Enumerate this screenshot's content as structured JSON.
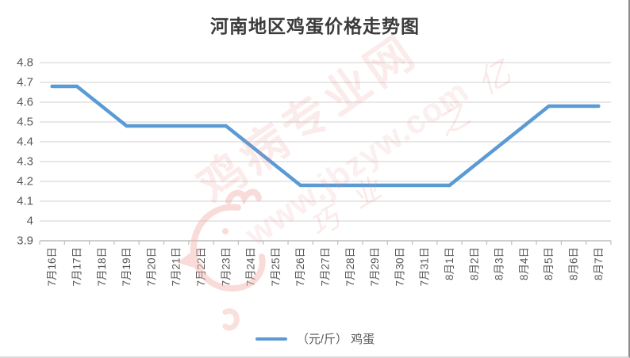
{
  "title": "河南地区鸡蛋价格走势图",
  "legend": {
    "label": "（元/斤） 鸡蛋"
  },
  "watermark": {
    "site_name": "鸡病专业网",
    "url": "www.jbzyw.com",
    "script_glyphs": [
      "之",
      "亿",
      "业",
      "巧"
    ],
    "color": "#e98b8b"
  },
  "colors": {
    "series_line": "#5b9bd5",
    "gridline": "#d9d9d9",
    "axis_line": "#bfbfbf",
    "axis_text": "#595959",
    "title_text": "#3b3b3b"
  },
  "chart_data": {
    "type": "line",
    "title": "河南地区鸡蛋价格走势图",
    "x": [
      "7月16日",
      "7月17日",
      "7月18日",
      "7月19日",
      "7月20日",
      "7月21日",
      "7月22日",
      "7月23日",
      "7月24日",
      "7月25日",
      "7月26日",
      "7月27日",
      "7月28日",
      "7月29日",
      "7月30日",
      "7月31日",
      "8月1日",
      "8月2日",
      "8月3日",
      "8月4日",
      "8月5日",
      "8月6日",
      "8月7日"
    ],
    "series": [
      {
        "name": "（元/斤） 鸡蛋",
        "values": [
          4.68,
          4.68,
          4.58,
          4.48,
          4.48,
          4.48,
          4.48,
          4.48,
          4.38,
          4.28,
          4.18,
          4.18,
          4.18,
          4.18,
          4.18,
          4.18,
          4.18,
          4.28,
          4.38,
          4.48,
          4.58,
          4.58,
          4.58
        ]
      }
    ],
    "xlabel": "",
    "ylabel": "",
    "ylim": [
      3.9,
      4.8
    ],
    "y_tick_step": 0.1,
    "y_tick_labels_top_to_bottom": [
      "4.8",
      "4.7",
      "4.6",
      "4.5",
      "4.4",
      "4.3",
      "4.2",
      "4.1",
      "4",
      "3.9"
    ],
    "grid": true,
    "legend_position": "bottom"
  }
}
